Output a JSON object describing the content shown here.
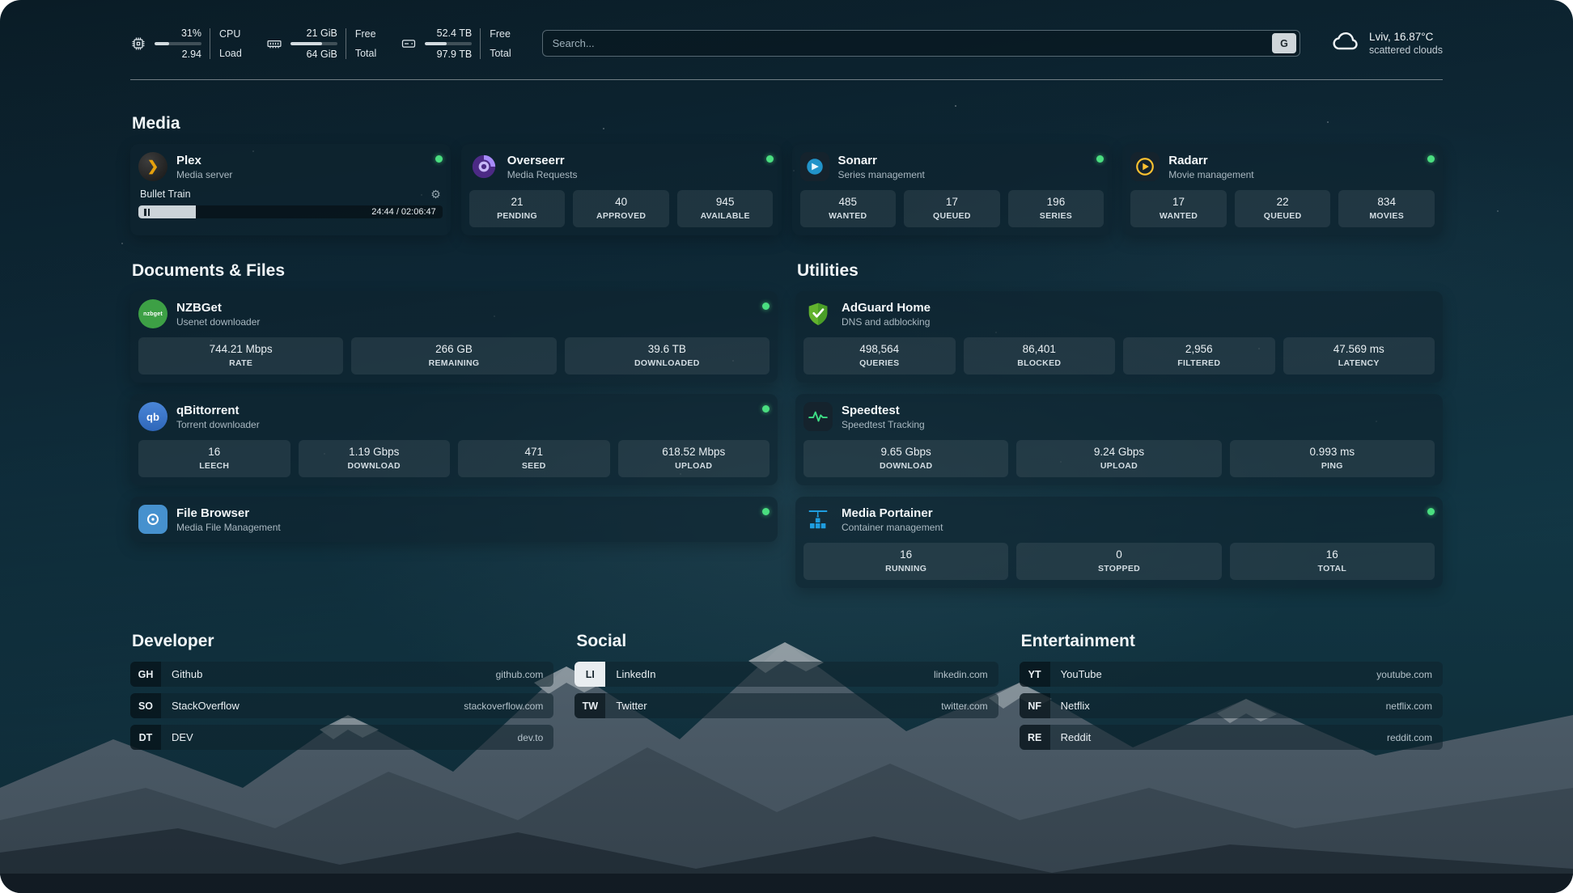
{
  "topbar": {
    "cpu": {
      "value_top": "31%",
      "value_bottom": "2.94",
      "label_top": "CPU",
      "label_bottom": "Load",
      "bar_percent": 31
    },
    "memory": {
      "value_top": "21 GiB",
      "value_bottom": "64 GiB",
      "label_top": "Free",
      "label_bottom": "Total",
      "bar_percent": 67
    },
    "storage": {
      "value_top": "52.4 TB",
      "value_bottom": "97.9 TB",
      "label_top": "Free",
      "label_bottom": "Total",
      "bar_percent": 46
    },
    "search": {
      "placeholder": "Search...",
      "button": "G"
    },
    "weather": {
      "line1": "Lviv, 16.87°C",
      "line2": "scattered clouds"
    }
  },
  "media": {
    "title": "Media",
    "plex": {
      "name": "Plex",
      "desc": "Media server",
      "icon_glyph": "❯",
      "now_playing": "Bullet Train",
      "time": "24:44 / 02:06:47",
      "progress_percent": 19
    },
    "overseerr": {
      "name": "Overseerr",
      "desc": "Media Requests",
      "stats": [
        {
          "value": "21",
          "label": "PENDING"
        },
        {
          "value": "40",
          "label": "APPROVED"
        },
        {
          "value": "945",
          "label": "AVAILABLE"
        }
      ]
    },
    "sonarr": {
      "name": "Sonarr",
      "desc": "Series management",
      "stats": [
        {
          "value": "485",
          "label": "WANTED"
        },
        {
          "value": "17",
          "label": "QUEUED"
        },
        {
          "value": "196",
          "label": "SERIES"
        }
      ]
    },
    "radarr": {
      "name": "Radarr",
      "desc": "Movie management",
      "stats": [
        {
          "value": "17",
          "label": "WANTED"
        },
        {
          "value": "22",
          "label": "QUEUED"
        },
        {
          "value": "834",
          "label": "MOVIES"
        }
      ]
    }
  },
  "documents": {
    "title": "Documents & Files",
    "nzbget": {
      "name": "NZBGet",
      "desc": "Usenet downloader",
      "icon_label": "nzbget",
      "stats": [
        {
          "value": "744.21 Mbps",
          "label": "RATE"
        },
        {
          "value": "266 GB",
          "label": "REMAINING"
        },
        {
          "value": "39.6 TB",
          "label": "DOWNLOADED"
        }
      ]
    },
    "qbittorrent": {
      "name": "qBittorrent",
      "desc": "Torrent downloader",
      "icon_label": "qb",
      "stats": [
        {
          "value": "16",
          "label": "LEECH"
        },
        {
          "value": "1.19 Gbps",
          "label": "DOWNLOAD"
        },
        {
          "value": "471",
          "label": "SEED"
        },
        {
          "value": "618.52 Mbps",
          "label": "UPLOAD"
        }
      ]
    },
    "filebrowser": {
      "name": "File Browser",
      "desc": "Media File Management"
    }
  },
  "utilities": {
    "title": "Utilities",
    "adguard": {
      "name": "AdGuard Home",
      "desc": "DNS and adblocking",
      "stats": [
        {
          "value": "498,564",
          "label": "QUERIES"
        },
        {
          "value": "86,401",
          "label": "BLOCKED"
        },
        {
          "value": "2,956",
          "label": "FILTERED"
        },
        {
          "value": "47.569 ms",
          "label": "LATENCY"
        }
      ]
    },
    "speedtest": {
      "name": "Speedtest",
      "desc": "Speedtest Tracking",
      "stats": [
        {
          "value": "9.65 Gbps",
          "label": "DOWNLOAD"
        },
        {
          "value": "9.24 Gbps",
          "label": "UPLOAD"
        },
        {
          "value": "0.993 ms",
          "label": "PING"
        }
      ]
    },
    "portainer": {
      "name": "Media Portainer",
      "desc": "Container management",
      "stats": [
        {
          "value": "16",
          "label": "RUNNING"
        },
        {
          "value": "0",
          "label": "STOPPED"
        },
        {
          "value": "16",
          "label": "TOTAL"
        }
      ]
    }
  },
  "bookmarks": {
    "developer": {
      "title": "Developer",
      "items": [
        {
          "abbr": "GH",
          "name": "Github",
          "url": "github.com"
        },
        {
          "abbr": "SO",
          "name": "StackOverflow",
          "url": "stackoverflow.com"
        },
        {
          "abbr": "DT",
          "name": "DEV",
          "url": "dev.to"
        }
      ]
    },
    "social": {
      "title": "Social",
      "items": [
        {
          "abbr": "LI",
          "name": "LinkedIn",
          "url": "linkedin.com"
        },
        {
          "abbr": "TW",
          "name": "Twitter",
          "url": "twitter.com"
        }
      ]
    },
    "entertainment": {
      "title": "Entertainment",
      "items": [
        {
          "abbr": "YT",
          "name": "YouTube",
          "url": "youtube.com"
        },
        {
          "abbr": "NF",
          "name": "Netflix",
          "url": "netflix.com"
        },
        {
          "abbr": "RE",
          "name": "Reddit",
          "url": "reddit.com"
        }
      ]
    }
  }
}
